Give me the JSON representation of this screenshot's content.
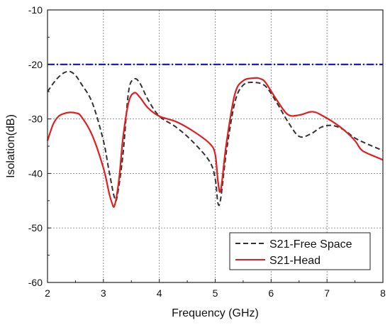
{
  "chart_data": {
    "type": "line",
    "title": "",
    "xlabel": "Frequency (GHz)",
    "ylabel": "Isolation(dB)",
    "xlim": [
      2,
      8
    ],
    "ylim": [
      -60,
      -10
    ],
    "xticks": [
      2,
      3,
      4,
      5,
      6,
      7,
      8
    ],
    "yticks": [
      -10,
      -20,
      -30,
      -40,
      -50,
      -60
    ],
    "xtick_labels": [
      "2",
      "3",
      "4",
      "5",
      "6",
      "7",
      "8"
    ],
    "ytick_labels": [
      "-10",
      "-20",
      "-30",
      "-40",
      "-50",
      "-60"
    ],
    "grid": true,
    "legend_position": "bottom-right",
    "reference_line": {
      "y": -20,
      "color": "#0000cc",
      "style": "dash-dot"
    },
    "series": [
      {
        "name": "S21-Free Space",
        "color": "#333333",
        "style": "dashed",
        "x": [
          2.0,
          2.1,
          2.2,
          2.3,
          2.4,
          2.5,
          2.6,
          2.8,
          3.0,
          3.1,
          3.2,
          3.25,
          3.35,
          3.45,
          3.55,
          3.65,
          3.8,
          4.0,
          4.3,
          4.6,
          4.9,
          5.0,
          5.05,
          5.1,
          5.2,
          5.35,
          5.5,
          5.7,
          5.9,
          6.1,
          6.3,
          6.5,
          6.7,
          6.9,
          7.1,
          7.3,
          7.5,
          7.7,
          8.0
        ],
        "y": [
          -25.0,
          -23.5,
          -22.3,
          -21.5,
          -21.3,
          -22.0,
          -23.5,
          -27.0,
          -34.0,
          -39.5,
          -44.5,
          -44.0,
          -36.5,
          -25.0,
          -22.7,
          -23.4,
          -26.5,
          -29.5,
          -31.5,
          -34.2,
          -37.8,
          -41.0,
          -45.5,
          -44.5,
          -36.0,
          -27.0,
          -23.8,
          -23.3,
          -24.0,
          -27.0,
          -30.5,
          -33.2,
          -32.8,
          -31.5,
          -31.2,
          -32.0,
          -33.5,
          -34.5,
          -35.8
        ]
      },
      {
        "name": "S21-Head",
        "color": "#e02020",
        "style": "solid",
        "x": [
          2.0,
          2.1,
          2.2,
          2.3,
          2.4,
          2.5,
          2.6,
          2.8,
          3.0,
          3.1,
          3.15,
          3.2,
          3.28,
          3.35,
          3.45,
          3.55,
          3.65,
          3.8,
          4.0,
          4.3,
          4.6,
          4.9,
          5.0,
          5.05,
          5.1,
          5.2,
          5.35,
          5.5,
          5.7,
          5.8,
          5.9,
          6.1,
          6.3,
          6.5,
          6.7,
          6.8,
          6.9,
          7.1,
          7.3,
          7.5,
          7.6,
          7.7,
          8.0
        ],
        "y": [
          -34.0,
          -31.0,
          -29.5,
          -29.0,
          -28.8,
          -28.9,
          -29.5,
          -33.0,
          -39.0,
          -43.5,
          -45.3,
          -45.9,
          -41.0,
          -33.5,
          -27.0,
          -25.2,
          -26.0,
          -28.0,
          -29.5,
          -30.5,
          -32.2,
          -34.5,
          -36.5,
          -41.5,
          -43.0,
          -34.5,
          -25.5,
          -23.0,
          -22.5,
          -22.6,
          -23.3,
          -26.5,
          -29.2,
          -29.3,
          -28.7,
          -28.8,
          -29.3,
          -30.5,
          -32.0,
          -34.0,
          -35.5,
          -36.2,
          -37.5
        ]
      }
    ]
  }
}
